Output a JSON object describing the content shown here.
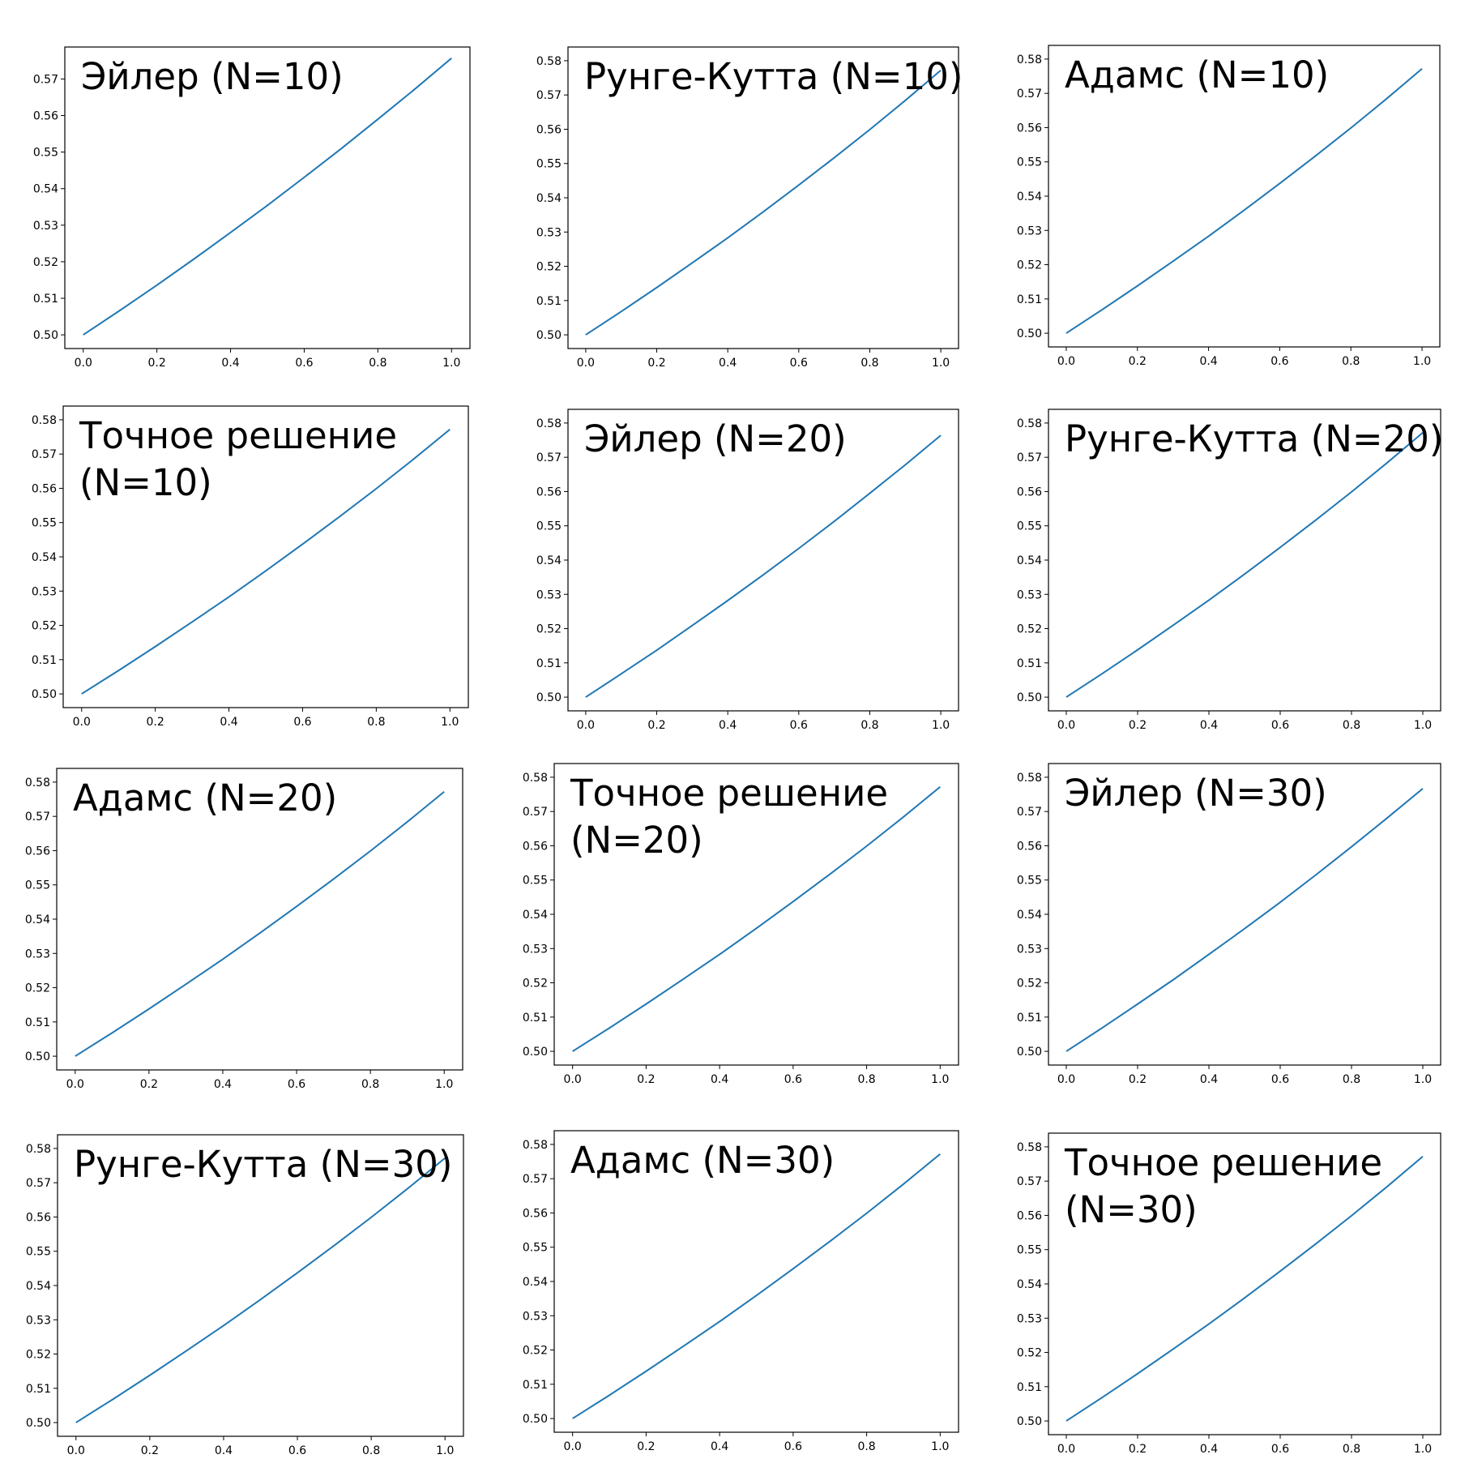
{
  "colors": {
    "series": "#1f77b4",
    "axes": "#000000",
    "background": "#ffffff"
  },
  "chart_data": [
    {
      "type": "line",
      "title": [
        "Эйлер (N=10)"
      ],
      "xlim": [
        0,
        1
      ],
      "ylim": [
        0.5,
        0.575
      ],
      "xticks": [
        "0.0",
        "0.2",
        "0.4",
        "0.6",
        "0.8",
        "1.0"
      ],
      "yticks": [
        "0.50",
        "0.51",
        "0.52",
        "0.53",
        "0.54",
        "0.55",
        "0.56",
        "0.57"
      ],
      "x": [
        0,
        0.1,
        0.2,
        0.3,
        0.4,
        0.5,
        0.6,
        0.7,
        0.8,
        0.9,
        1.0
      ],
      "y": [
        0.5,
        0.5067,
        0.5136,
        0.5207,
        0.528,
        0.5354,
        0.5431,
        0.5509,
        0.559,
        0.5672,
        0.5757
      ]
    },
    {
      "type": "line",
      "title": [
        "Рунге-Кутта (N=10)"
      ],
      "xlim": [
        0,
        1
      ],
      "ylim": [
        0.5,
        0.58
      ],
      "xticks": [
        "0.0",
        "0.2",
        "0.4",
        "0.6",
        "0.8",
        "1.0"
      ],
      "yticks": [
        "0.50",
        "0.51",
        "0.52",
        "0.53",
        "0.54",
        "0.55",
        "0.56",
        "0.57",
        "0.58"
      ],
      "x": [
        0,
        0.1,
        0.2,
        0.3,
        0.4,
        0.5,
        0.6,
        0.7,
        0.8,
        0.9,
        1.0
      ],
      "y": [
        0.5,
        0.5068,
        0.5138,
        0.521,
        0.5283,
        0.5359,
        0.5437,
        0.5517,
        0.5599,
        0.5684,
        0.5772
      ]
    },
    {
      "type": "line",
      "title": [
        "Адамс (N=10)"
      ],
      "xlim": [
        0,
        1
      ],
      "ylim": [
        0.5,
        0.58
      ],
      "xticks": [
        "0.0",
        "0.2",
        "0.4",
        "0.6",
        "0.8",
        "1.0"
      ],
      "yticks": [
        "0.50",
        "0.51",
        "0.52",
        "0.53",
        "0.54",
        "0.55",
        "0.56",
        "0.57",
        "0.58"
      ],
      "x": [
        0,
        0.1,
        0.2,
        0.3,
        0.4,
        0.5,
        0.6,
        0.7,
        0.8,
        0.9,
        1.0
      ],
      "y": [
        0.5,
        0.5068,
        0.5138,
        0.521,
        0.5283,
        0.5359,
        0.5437,
        0.5517,
        0.5599,
        0.5684,
        0.5772
      ]
    },
    {
      "type": "line",
      "title": [
        "Точное решение",
        "(N=10)"
      ],
      "xlim": [
        0,
        1
      ],
      "ylim": [
        0.5,
        0.58
      ],
      "xticks": [
        "0.0",
        "0.2",
        "0.4",
        "0.6",
        "0.8",
        "1.0"
      ],
      "yticks": [
        "0.50",
        "0.51",
        "0.52",
        "0.53",
        "0.54",
        "0.55",
        "0.56",
        "0.57",
        "0.58"
      ],
      "x": [
        0,
        0.1,
        0.2,
        0.3,
        0.4,
        0.5,
        0.6,
        0.7,
        0.8,
        0.9,
        1.0
      ],
      "y": [
        0.5,
        0.5068,
        0.5138,
        0.521,
        0.5283,
        0.5359,
        0.5437,
        0.5517,
        0.5599,
        0.5684,
        0.5772
      ]
    },
    {
      "type": "line",
      "title": [
        "Эйлер (N=20)"
      ],
      "xlim": [
        0,
        1
      ],
      "ylim": [
        0.5,
        0.58
      ],
      "xticks": [
        "0.0",
        "0.2",
        "0.4",
        "0.6",
        "0.8",
        "1.0"
      ],
      "yticks": [
        "0.50",
        "0.51",
        "0.52",
        "0.53",
        "0.54",
        "0.55",
        "0.56",
        "0.57",
        "0.58"
      ],
      "x": [
        0,
        0.1,
        0.2,
        0.3,
        0.4,
        0.5,
        0.6,
        0.7,
        0.8,
        0.9,
        1.0
      ],
      "y": [
        0.5,
        0.5068,
        0.5137,
        0.5209,
        0.5282,
        0.5357,
        0.5434,
        0.5513,
        0.5595,
        0.5678,
        0.5764
      ]
    },
    {
      "type": "line",
      "title": [
        "Рунге-Кутта (N=20)"
      ],
      "xlim": [
        0,
        1
      ],
      "ylim": [
        0.5,
        0.58
      ],
      "xticks": [
        "0.0",
        "0.2",
        "0.4",
        "0.6",
        "0.8",
        "1.0"
      ],
      "yticks": [
        "0.50",
        "0.51",
        "0.52",
        "0.53",
        "0.54",
        "0.55",
        "0.56",
        "0.57",
        "0.58"
      ],
      "x": [
        0,
        0.1,
        0.2,
        0.3,
        0.4,
        0.5,
        0.6,
        0.7,
        0.8,
        0.9,
        1.0
      ],
      "y": [
        0.5,
        0.5068,
        0.5138,
        0.521,
        0.5283,
        0.5359,
        0.5437,
        0.5517,
        0.5599,
        0.5684,
        0.5772
      ]
    },
    {
      "type": "line",
      "title": [
        "Адамс (N=20)"
      ],
      "xlim": [
        0,
        1
      ],
      "ylim": [
        0.5,
        0.58
      ],
      "xticks": [
        "0.0",
        "0.2",
        "0.4",
        "0.6",
        "0.8",
        "1.0"
      ],
      "yticks": [
        "0.50",
        "0.51",
        "0.52",
        "0.53",
        "0.54",
        "0.55",
        "0.56",
        "0.57",
        "0.58"
      ],
      "x": [
        0,
        0.1,
        0.2,
        0.3,
        0.4,
        0.5,
        0.6,
        0.7,
        0.8,
        0.9,
        1.0
      ],
      "y": [
        0.5,
        0.5068,
        0.5138,
        0.521,
        0.5283,
        0.5359,
        0.5437,
        0.5517,
        0.5599,
        0.5684,
        0.5772
      ]
    },
    {
      "type": "line",
      "title": [
        "Точное решение",
        "(N=20)"
      ],
      "xlim": [
        0,
        1
      ],
      "ylim": [
        0.5,
        0.58
      ],
      "xticks": [
        "0.0",
        "0.2",
        "0.4",
        "0.6",
        "0.8",
        "1.0"
      ],
      "yticks": [
        "0.50",
        "0.51",
        "0.52",
        "0.53",
        "0.54",
        "0.55",
        "0.56",
        "0.57",
        "0.58"
      ],
      "x": [
        0,
        0.1,
        0.2,
        0.3,
        0.4,
        0.5,
        0.6,
        0.7,
        0.8,
        0.9,
        1.0
      ],
      "y": [
        0.5,
        0.5068,
        0.5138,
        0.521,
        0.5283,
        0.5359,
        0.5437,
        0.5517,
        0.5599,
        0.5684,
        0.5772
      ]
    },
    {
      "type": "line",
      "title": [
        "Эйлер (N=30)"
      ],
      "xlim": [
        0,
        1
      ],
      "ylim": [
        0.5,
        0.58
      ],
      "xticks": [
        "0.0",
        "0.2",
        "0.4",
        "0.6",
        "0.8",
        "1.0"
      ],
      "yticks": [
        "0.50",
        "0.51",
        "0.52",
        "0.53",
        "0.54",
        "0.55",
        "0.56",
        "0.57",
        "0.58"
      ],
      "x": [
        0,
        0.1,
        0.2,
        0.3,
        0.4,
        0.5,
        0.6,
        0.7,
        0.8,
        0.9,
        1.0
      ],
      "y": [
        0.5,
        0.5068,
        0.5138,
        0.5209,
        0.5283,
        0.5358,
        0.5435,
        0.5515,
        0.5597,
        0.5681,
        0.5767
      ]
    },
    {
      "type": "line",
      "title": [
        "Рунге-Кутта (N=30)"
      ],
      "xlim": [
        0,
        1
      ],
      "ylim": [
        0.5,
        0.58
      ],
      "xticks": [
        "0.0",
        "0.2",
        "0.4",
        "0.6",
        "0.8",
        "1.0"
      ],
      "yticks": [
        "0.50",
        "0.51",
        "0.52",
        "0.53",
        "0.54",
        "0.55",
        "0.56",
        "0.57",
        "0.58"
      ],
      "x": [
        0,
        0.1,
        0.2,
        0.3,
        0.4,
        0.5,
        0.6,
        0.7,
        0.8,
        0.9,
        1.0
      ],
      "y": [
        0.5,
        0.5068,
        0.5138,
        0.521,
        0.5283,
        0.5359,
        0.5437,
        0.5517,
        0.5599,
        0.5684,
        0.5772
      ]
    },
    {
      "type": "line",
      "title": [
        "Адамс (N=30)"
      ],
      "xlim": [
        0,
        1
      ],
      "ylim": [
        0.5,
        0.58
      ],
      "xticks": [
        "0.0",
        "0.2",
        "0.4",
        "0.6",
        "0.8",
        "1.0"
      ],
      "yticks": [
        "0.50",
        "0.51",
        "0.52",
        "0.53",
        "0.54",
        "0.55",
        "0.56",
        "0.57",
        "0.58"
      ],
      "x": [
        0,
        0.1,
        0.2,
        0.3,
        0.4,
        0.5,
        0.6,
        0.7,
        0.8,
        0.9,
        1.0
      ],
      "y": [
        0.5,
        0.5068,
        0.5138,
        0.521,
        0.5283,
        0.5359,
        0.5437,
        0.5517,
        0.5599,
        0.5684,
        0.5772
      ]
    },
    {
      "type": "line",
      "title": [
        "Точное решение",
        "(N=30)"
      ],
      "xlim": [
        0,
        1
      ],
      "ylim": [
        0.5,
        0.58
      ],
      "xticks": [
        "0.0",
        "0.2",
        "0.4",
        "0.6",
        "0.8",
        "1.0"
      ],
      "yticks": [
        "0.50",
        "0.51",
        "0.52",
        "0.53",
        "0.54",
        "0.55",
        "0.56",
        "0.57",
        "0.58"
      ],
      "x": [
        0,
        0.1,
        0.2,
        0.3,
        0.4,
        0.5,
        0.6,
        0.7,
        0.8,
        0.9,
        1.0
      ],
      "y": [
        0.5,
        0.5068,
        0.5138,
        0.521,
        0.5283,
        0.5359,
        0.5437,
        0.5517,
        0.5599,
        0.5684,
        0.5772
      ]
    }
  ]
}
